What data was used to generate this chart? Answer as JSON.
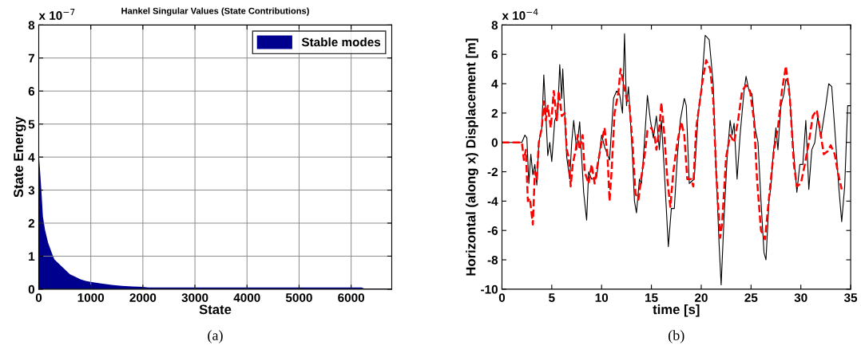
{
  "chart_data": [
    {
      "type": "area",
      "title": "Hankel Singular Values (State Contributions)",
      "xlabel": "State",
      "ylabel": "State Energy",
      "annotations": [
        "x 10$^{−7}$",
        "(a)"
      ],
      "xlim": [
        0,
        6780
      ],
      "xticks": [
        0,
        1000,
        2000,
        3000,
        4000,
        5000,
        6000
      ],
      "ylim": [
        0,
        8
      ],
      "yticks": [
        0,
        1,
        2,
        3,
        4,
        5,
        6,
        7,
        8
      ],
      "grid": true,
      "legend": "top right",
      "series": [
        {
          "name": "Stable modes",
          "color": "#00008f",
          "x": [
            0,
            5,
            20,
            50,
            80,
            120,
            180,
            250,
            300,
            400,
            500,
            600,
            700,
            800,
            900,
            1000,
            1200,
            1400,
            1600,
            1800,
            2000,
            2100,
            3000,
            4000,
            5000,
            6200,
            6250,
            6780
          ],
          "values": [
            7.5,
            4.0,
            3.7,
            3.0,
            2.2,
            1.8,
            1.4,
            1.1,
            0.9,
            0.75,
            0.6,
            0.45,
            0.38,
            0.3,
            0.25,
            0.22,
            0.17,
            0.13,
            0.1,
            0.08,
            0.07,
            0.05,
            0.05,
            0.05,
            0.05,
            0.05,
            0.02,
            0.02
          ]
        }
      ]
    },
    {
      "type": "line",
      "xlabel": "time [s]",
      "ylabel": "Horizontal (along x) Displacement [m]",
      "annotations": [
        "x 10$^{−4}$",
        "(b)"
      ],
      "xlim": [
        0,
        35
      ],
      "xticks": [
        0,
        5,
        10,
        15,
        20,
        25,
        30,
        35
      ],
      "ylim": [
        -10,
        8
      ],
      "yticks": [
        -10,
        -8,
        -6,
        -4,
        -2,
        0,
        2,
        4,
        6,
        8
      ],
      "grid": false,
      "series": [
        {
          "color": "#000000",
          "line_style": "solid",
          "x": [
            0,
            2,
            2.3,
            2.5,
            2.7,
            2.9,
            3.1,
            3.3,
            3.5,
            3.7,
            4,
            4.2,
            4.4,
            4.6,
            4.8,
            5,
            5.3,
            5.6,
            5.8,
            6,
            6.1,
            6.3,
            6.5,
            6.8,
            7,
            7.2,
            7.5,
            7.8,
            8,
            8.2,
            8.5,
            8.7,
            9,
            9.5,
            10,
            10.3,
            10.8,
            11.2,
            11.5,
            11.8,
            12.1,
            12.3,
            12.5,
            12.7,
            13.1,
            13.3,
            13.5,
            13.8,
            14,
            14.2,
            14.6,
            14.9,
            15.2,
            15.5,
            15.8,
            16,
            16.3,
            16.7,
            17,
            17.3,
            17.6,
            17.9,
            18.3,
            18.5,
            18.8,
            19.3,
            19.7,
            20,
            20.4,
            20.8,
            21.2,
            21.5,
            21.8,
            22,
            22.3,
            22.6,
            22.9,
            23.1,
            23.3,
            23.6,
            23.9,
            24.3,
            24.5,
            24.8,
            25.1,
            25.4,
            25.7,
            26,
            26.3,
            26.5,
            26.8,
            27,
            27.2,
            27.5,
            27.7,
            28,
            28.3,
            28.5,
            28.8,
            29.2,
            29.6,
            29.9,
            30.2,
            30.5,
            30.8,
            31.1,
            31.4,
            31.7,
            32,
            32.5,
            32.8,
            33.1,
            33.5,
            33.8,
            34.1,
            34.4,
            34.7,
            35
          ],
          "values": [
            0,
            0,
            0.5,
            0.3,
            -2.8,
            -0.8,
            -2.2,
            -1.5,
            -2.9,
            0,
            1,
            4.6,
            2,
            -0.9,
            0,
            -1.3,
            1.5,
            2,
            5.3,
            3,
            5,
            2,
            -1,
            -2.5,
            0,
            1.5,
            -0.5,
            1.4,
            -1,
            -3.4,
            -5.3,
            -2,
            -2.5,
            -2.4,
            0.5,
            -0.3,
            -1.2,
            3,
            3.5,
            3.3,
            2,
            7.4,
            2.5,
            3.8,
            -1,
            -4,
            -4.8,
            -2.5,
            -2.8,
            -1,
            3.2,
            1.5,
            0.3,
            1.8,
            -0.5,
            1.5,
            -2,
            -7.1,
            -4.5,
            -4.5,
            -1,
            1.5,
            3,
            2.5,
            -2.8,
            -2.5,
            2,
            3.5,
            7.3,
            7,
            4,
            -2,
            -7,
            -9.7,
            -5,
            -1,
            1.5,
            0.5,
            1.3,
            -2.5,
            0.5,
            3.5,
            4.5,
            3.5,
            3.3,
            1,
            0,
            -4,
            -7.5,
            -8,
            -4,
            -3,
            -1,
            1,
            -0.5,
            2.5,
            3.3,
            4.3,
            4,
            0,
            -3.4,
            -1.5,
            -1.5,
            1.5,
            -3.2,
            -0.5,
            0,
            1.8,
            0.3,
            2.5,
            4,
            3.8,
            0,
            -3,
            -5.4,
            -3,
            2.5,
            2.5
          ]
        },
        {
          "color": "#ff0000",
          "line_style": "dashed",
          "x": [
            0,
            2,
            2.2,
            2.4,
            2.6,
            2.8,
            3.1,
            3.3,
            3.5,
            3.7,
            4,
            4.2,
            4.4,
            4.6,
            4.9,
            5.2,
            5.5,
            5.7,
            6,
            6.3,
            6.5,
            6.7,
            6.9,
            7.1,
            7.4,
            7.6,
            7.8,
            8.1,
            8.3,
            8.7,
            9,
            9.3,
            9.6,
            10,
            10.3,
            10.6,
            10.8,
            11,
            11.3,
            11.7,
            11.9,
            12.2,
            12.5,
            12.8,
            13.1,
            13.4,
            13.7,
            14,
            14.3,
            14.6,
            15,
            15.3,
            15.5,
            15.8,
            16,
            16.3,
            16.6,
            16.9,
            17.2,
            17.6,
            18,
            18.3,
            18.6,
            19,
            19.2,
            19.5,
            19.9,
            20.2,
            20.5,
            20.9,
            21.2,
            21.5,
            21.9,
            22.1,
            22.5,
            22.9,
            23.3,
            23.7,
            24.1,
            24.5,
            24.9,
            25.3,
            25.6,
            26,
            26.4,
            26.8,
            27.3,
            27.7,
            28.1,
            28.5,
            28.9,
            29.3,
            29.6,
            30,
            30.4,
            30.8,
            31.2,
            31.6,
            32,
            32.3,
            32.7,
            33,
            33.4,
            33.7,
            34.1
          ],
          "values": [
            0,
            0,
            -1.2,
            -0.5,
            -4,
            -3.8,
            -5.6,
            -2,
            -2.5,
            0,
            1,
            2.8,
            1.5,
            2.5,
            1,
            3.5,
            1.5,
            3.5,
            1.8,
            2,
            -0.5,
            -1,
            -3,
            -1.5,
            -0.5,
            0.5,
            -0.5,
            0.5,
            -2,
            -2.8,
            -1.5,
            -2.8,
            -1.5,
            0,
            1,
            -1,
            -4,
            -2,
            2,
            3.5,
            5,
            4,
            3,
            2.5,
            0,
            -3.5,
            -3.9,
            -2.3,
            -1,
            0.8,
            1,
            0.5,
            -0.5,
            1,
            2.7,
            0.5,
            -2.5,
            -4.4,
            -2,
            0,
            1.4,
            0.5,
            -2.5,
            -2.5,
            -3,
            1,
            3,
            4.5,
            5.6,
            5,
            3,
            -2,
            -6.5,
            -5.5,
            -1,
            0.5,
            0,
            1.5,
            3.5,
            3.9,
            3.5,
            1.5,
            -2.5,
            -6,
            -6.6,
            -3.8,
            -0.5,
            1,
            3.5,
            5.2,
            3,
            -1.5,
            -3,
            -2.8,
            -1.5,
            0,
            1.8,
            2.2,
            0.5,
            -0.8,
            -0.6,
            -0.2,
            -0.8,
            -2,
            -3.2
          ]
        }
      ]
    }
  ]
}
